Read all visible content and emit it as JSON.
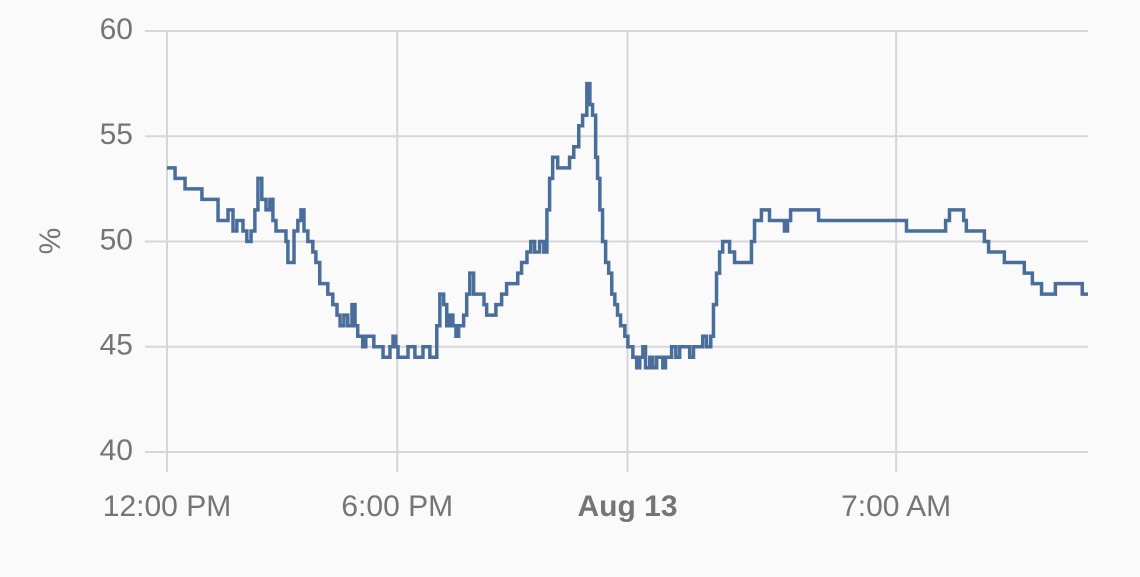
{
  "chart_data": {
    "type": "step-line",
    "ylabel": "%",
    "xlim": [
      0,
      24
    ],
    "xticks": [
      {
        "value": 0,
        "label": "12:00 PM"
      },
      {
        "value": 6,
        "label": "6:00 PM"
      },
      {
        "value": 12,
        "label": "Aug 13",
        "bold": true
      },
      {
        "value": 19,
        "label": "7:00 AM"
      }
    ],
    "ylim": [
      40,
      60
    ],
    "yticks": [
      40,
      45,
      50,
      55,
      60
    ],
    "grid": true,
    "series": [
      {
        "color": "#4a6e9b",
        "x": [
          0,
          0.21,
          0.47,
          0.91,
          1.33,
          1.59,
          1.72,
          1.82,
          1.98,
          2.08,
          2.19,
          2.29,
          2.37,
          2.47,
          2.58,
          2.68,
          2.76,
          2.84,
          3.1,
          3.15,
          3.31,
          3.41,
          3.49,
          3.57,
          3.67,
          3.8,
          3.88,
          3.98,
          4.19,
          4.32,
          4.43,
          4.51,
          4.61,
          4.71,
          4.82,
          4.9,
          4.97,
          5.1,
          5.18,
          5.39,
          5.63,
          5.81,
          5.89,
          5.96,
          6.02,
          6.28,
          6.46,
          6.67,
          6.85,
          7.03,
          7.11,
          7.21,
          7.29,
          7.37,
          7.45,
          7.53,
          7.6,
          7.73,
          7.81,
          7.89,
          7.99,
          8.26,
          8.33,
          8.57,
          8.72,
          8.85,
          9.14,
          9.24,
          9.38,
          9.48,
          9.58,
          9.71,
          9.82,
          9.9,
          9.97,
          10.05,
          10.18,
          10.49,
          10.6,
          10.73,
          10.83,
          10.94,
          11.02,
          11.09,
          11.17,
          11.22,
          11.28,
          11.35,
          11.43,
          11.51,
          11.59,
          11.67,
          11.74,
          11.82,
          11.93,
          12.01,
          12.14,
          12.24,
          12.32,
          12.4,
          12.47,
          12.58,
          12.66,
          12.76,
          12.92,
          12.99,
          13.15,
          13.26,
          13.36,
          13.62,
          13.72,
          13.96,
          14.06,
          14.17,
          14.24,
          14.32,
          14.4,
          14.48,
          14.66,
          14.79,
          15.23,
          15.31,
          15.49,
          15.7,
          16.09,
          16.17,
          16.25,
          16.98,
          19.27,
          20.29,
          20.39,
          20.76,
          20.83,
          21.3,
          21.41,
          21.82,
          22.34,
          22.55,
          22.79,
          23.15,
          23.85
        ],
        "values": [
          53.5,
          53,
          52.5,
          52,
          51,
          51.5,
          50.5,
          51,
          50.5,
          50,
          50.5,
          51.5,
          53,
          52,
          51.5,
          52,
          51,
          50.5,
          50,
          49,
          50.5,
          51,
          51.5,
          50.5,
          50,
          49.5,
          49,
          48,
          47.5,
          47,
          46.5,
          46,
          46.5,
          46,
          47,
          46,
          45.5,
          45,
          45.5,
          45,
          44.5,
          45,
          45.5,
          45,
          44.5,
          45,
          44.5,
          45,
          44.5,
          46,
          47.5,
          47,
          46,
          46.5,
          46,
          45.5,
          46,
          46.5,
          47.5,
          48.5,
          47.5,
          47,
          46.5,
          47,
          47.5,
          48,
          48.5,
          49,
          49.5,
          50,
          49.5,
          50,
          49.5,
          51.5,
          53,
          54,
          53.5,
          54,
          54.5,
          55.5,
          56,
          57.5,
          56.5,
          56,
          54,
          53,
          51.5,
          50,
          49,
          48.5,
          47.5,
          47,
          46.5,
          46,
          45.5,
          45,
          44.5,
          44,
          44.5,
          45,
          44,
          44.5,
          44,
          44.5,
          44,
          44.5,
          45,
          44.5,
          45,
          44.5,
          45,
          45.5,
          45,
          45.5,
          47,
          48.5,
          49.5,
          50,
          49.5,
          49,
          50,
          51,
          51.5,
          51,
          50.5,
          51,
          51.5,
          51,
          50.5,
          51,
          51.5,
          51,
          50.5,
          50,
          49.5,
          49,
          48.5,
          48,
          47.5,
          48,
          47.5
        ]
      }
    ]
  }
}
